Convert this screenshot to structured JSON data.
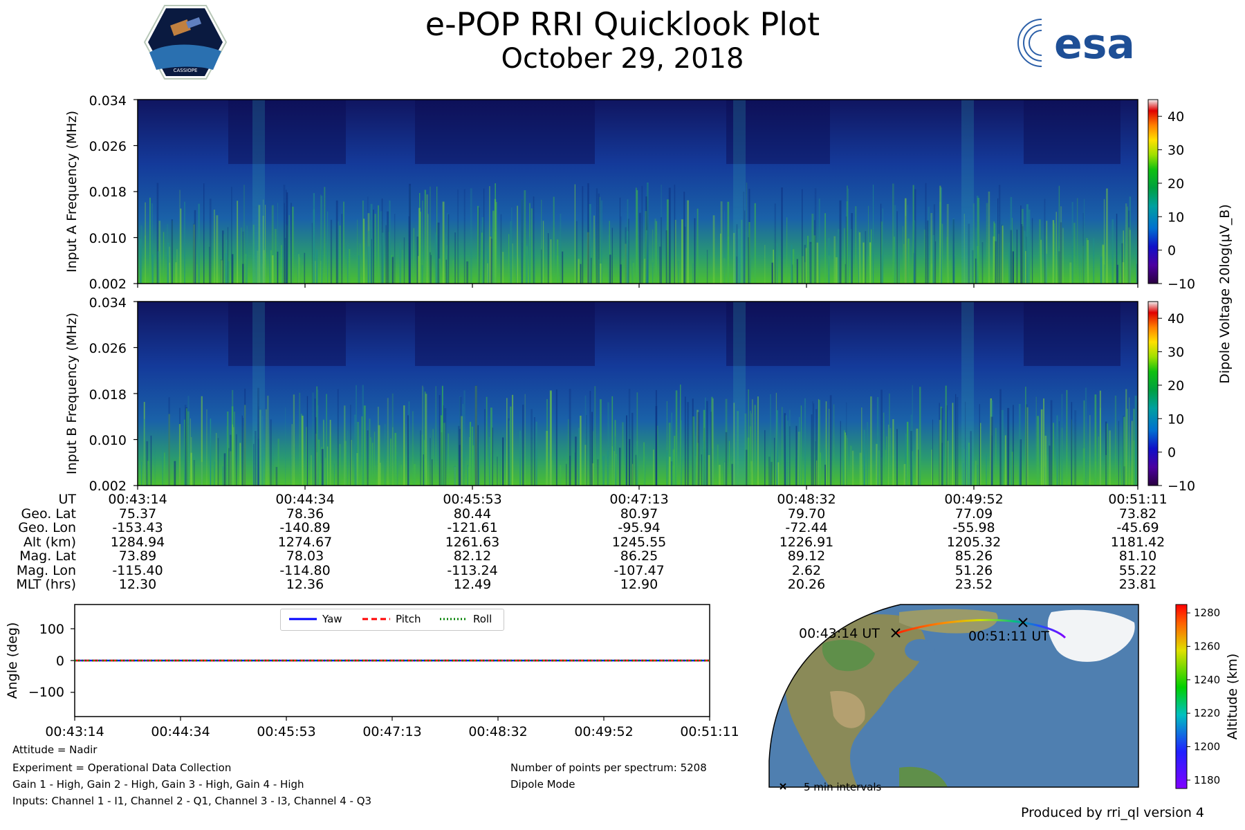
{
  "header": {
    "title": "e-POP RRI Quicklook Plot",
    "date": "October 29, 2018",
    "left_logo_text": "CASSIOPE",
    "right_logo_text": "esa"
  },
  "spectrograms": [
    {
      "ylabel": "Input A Frequency (MHz)"
    },
    {
      "ylabel": "Input B Frequency (MHz)"
    }
  ],
  "colorbar": {
    "label": "Dipole Voltage 20log(μV_B)",
    "ticks": [
      "40",
      "30",
      "20",
      "10",
      "0",
      "−10"
    ]
  },
  "ephemeris": {
    "labels": [
      "UT",
      "Geo. Lat",
      "Geo. Lon",
      "Alt (km)",
      "Mag. Lat",
      "Mag. Lon",
      "MLT (hrs)"
    ],
    "columns": [
      [
        "00:43:14",
        "75.37",
        "-153.43",
        "1284.94",
        "73.89",
        "-115.40",
        "12.30"
      ],
      [
        "00:44:34",
        "78.36",
        "-140.89",
        "1274.67",
        "78.03",
        "-114.80",
        "12.36"
      ],
      [
        "00:45:53",
        "80.44",
        "-121.61",
        "1261.63",
        "82.12",
        "-113.24",
        "12.49"
      ],
      [
        "00:47:13",
        "80.97",
        "-95.94",
        "1245.55",
        "86.25",
        "-107.47",
        "12.90"
      ],
      [
        "00:48:32",
        "79.70",
        "-72.44",
        "1226.91",
        "89.12",
        "2.62",
        "20.26"
      ],
      [
        "00:49:52",
        "77.09",
        "-55.98",
        "1205.32",
        "85.26",
        "51.26",
        "23.52"
      ],
      [
        "00:51:11",
        "73.82",
        "-45.69",
        "1181.42",
        "81.10",
        "55.22",
        "23.81"
      ]
    ]
  },
  "attitude": {
    "legend": [
      "Yaw",
      "Pitch",
      "Roll"
    ],
    "xticks": [
      "00:43:14",
      "00:44:34",
      "00:45:53",
      "00:47:13",
      "00:48:32",
      "00:49:52",
      "00:51:11"
    ]
  },
  "info": {
    "attitude": "Attitude = Nadir",
    "experiment": "Experiment = Operational Data Collection",
    "gains": "Gain 1 - High, Gain 2 - High, Gain 3 - High, Gain 4 - High",
    "inputs": "Inputs: Channel 1 - I1, Channel 2 - Q1, Channel 3 - I3, Channel 4 - Q3",
    "points": "Number of points per spectrum: 5208",
    "mode": "Dipole Mode"
  },
  "map": {
    "start_label": "00:43:14 UT",
    "end_label": "00:51:11 UT",
    "marker_legend": "5 min intervals",
    "altitude_label": "Altitude (km)",
    "altitude_ticks": [
      "1280",
      "1260",
      "1240",
      "1220",
      "1200",
      "1180"
    ]
  },
  "footer": {
    "produced_by": "Produced by rri_ql version 4"
  },
  "chart_data": [
    {
      "type": "heatmap",
      "title": "Input A",
      "ylabel": "Input A Frequency (MHz)",
      "yticks": [
        "0.034",
        "0.026",
        "0.018",
        "0.010",
        "0.002"
      ],
      "ylim": [
        0.002,
        0.034
      ],
      "x_range": [
        "00:43:14",
        "00:51:11"
      ],
      "color_range": [
        -10,
        45
      ],
      "description_values": "Spectral power, mostly 0 to 20 dB, strongest near 0.002–0.010 MHz"
    },
    {
      "type": "heatmap",
      "title": "Input B",
      "ylabel": "Input B Frequency (MHz)",
      "yticks": [
        "0.034",
        "0.026",
        "0.018",
        "0.010",
        "0.002"
      ],
      "ylim": [
        0.002,
        0.034
      ],
      "x_range": [
        "00:43:14",
        "00:51:11"
      ],
      "color_range": [
        -10,
        45
      ]
    },
    {
      "type": "line",
      "title": "Attitude",
      "ylabel": "Angle (deg)",
      "yticks": [
        "100",
        "0",
        "−100"
      ],
      "ylim": [
        -180,
        180
      ],
      "categories": [
        "00:43:14",
        "00:44:34",
        "00:45:53",
        "00:47:13",
        "00:48:32",
        "00:49:52",
        "00:51:11"
      ],
      "series": [
        {
          "name": "Yaw",
          "values": [
            0,
            0,
            0,
            0,
            0,
            0,
            0
          ],
          "color": "#0000ff",
          "style": "solid"
        },
        {
          "name": "Pitch",
          "values": [
            0,
            0,
            0,
            0,
            0,
            0,
            0
          ],
          "color": "#ff0000",
          "style": "dashed"
        },
        {
          "name": "Roll",
          "values": [
            0,
            0,
            0,
            0,
            0,
            0,
            0
          ],
          "color": "#008000",
          "style": "dotted"
        }
      ]
    }
  ]
}
